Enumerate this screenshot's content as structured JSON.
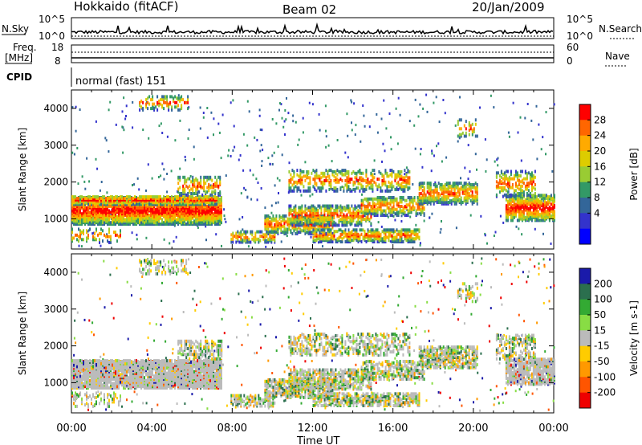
{
  "header": {
    "station": "Hokkaido (fitACF)",
    "beam": "Beam 02",
    "date": "20/Jan/2009"
  },
  "strips": {
    "nsky_label": "N.Sky",
    "nsky_ticks": [
      "10^5",
      "10^0"
    ],
    "nsearch_label": "N.Search",
    "freq_label_1": "Freq.",
    "freq_label_2": "[MHz]",
    "freq_ticks": [
      "18",
      "8"
    ],
    "nave_label": "Nave",
    "nave_ticks": [
      "60",
      "0"
    ],
    "cpid_label": "CPID",
    "cpid_value": "normal (fast) 151"
  },
  "chart_data": [
    {
      "type": "heatmap",
      "name": "power",
      "ylabel": "Slant Range [km]",
      "colorbar_label": "Power [dB]",
      "colorbar_ticks": [
        "28",
        "24",
        "20",
        "16",
        "12",
        "8",
        "4"
      ],
      "colorbar_colors": [
        "#ff0000",
        "#ff6600",
        "#ffaa00",
        "#ddcc00",
        "#99cc33",
        "#339966",
        "#336699",
        "#3333cc",
        "#0000ff"
      ],
      "ylim": [
        180,
        4500
      ],
      "yticks": [
        "4000",
        "3000",
        "2000",
        "1000"
      ],
      "xlabel": "Time UT",
      "xticks": [
        "00:00",
        "04:00",
        "08:00",
        "12:00",
        "16:00",
        "20:00",
        "00:00"
      ]
    },
    {
      "type": "heatmap",
      "name": "velocity",
      "ylabel": "Slant Range [km]",
      "colorbar_label": "Velocity [m s-1]",
      "colorbar_ticks": [
        "200",
        "100",
        "50",
        "15",
        "-15",
        "-50",
        "-100",
        "-200"
      ],
      "colorbar_colors": [
        "#1a1aaa",
        "#2b6f4e",
        "#33aa33",
        "#88dd44",
        "#bbbbbb",
        "#ffcc00",
        "#ff9900",
        "#ff5500",
        "#ee0000"
      ],
      "ylim": [
        180,
        4500
      ],
      "yticks": [
        "4000",
        "3000",
        "2000",
        "1000"
      ],
      "xlabel": "Time UT",
      "xticks": [
        "00:00",
        "04:00",
        "08:00",
        "12:00",
        "16:00",
        "20:00",
        "00:00"
      ]
    }
  ]
}
